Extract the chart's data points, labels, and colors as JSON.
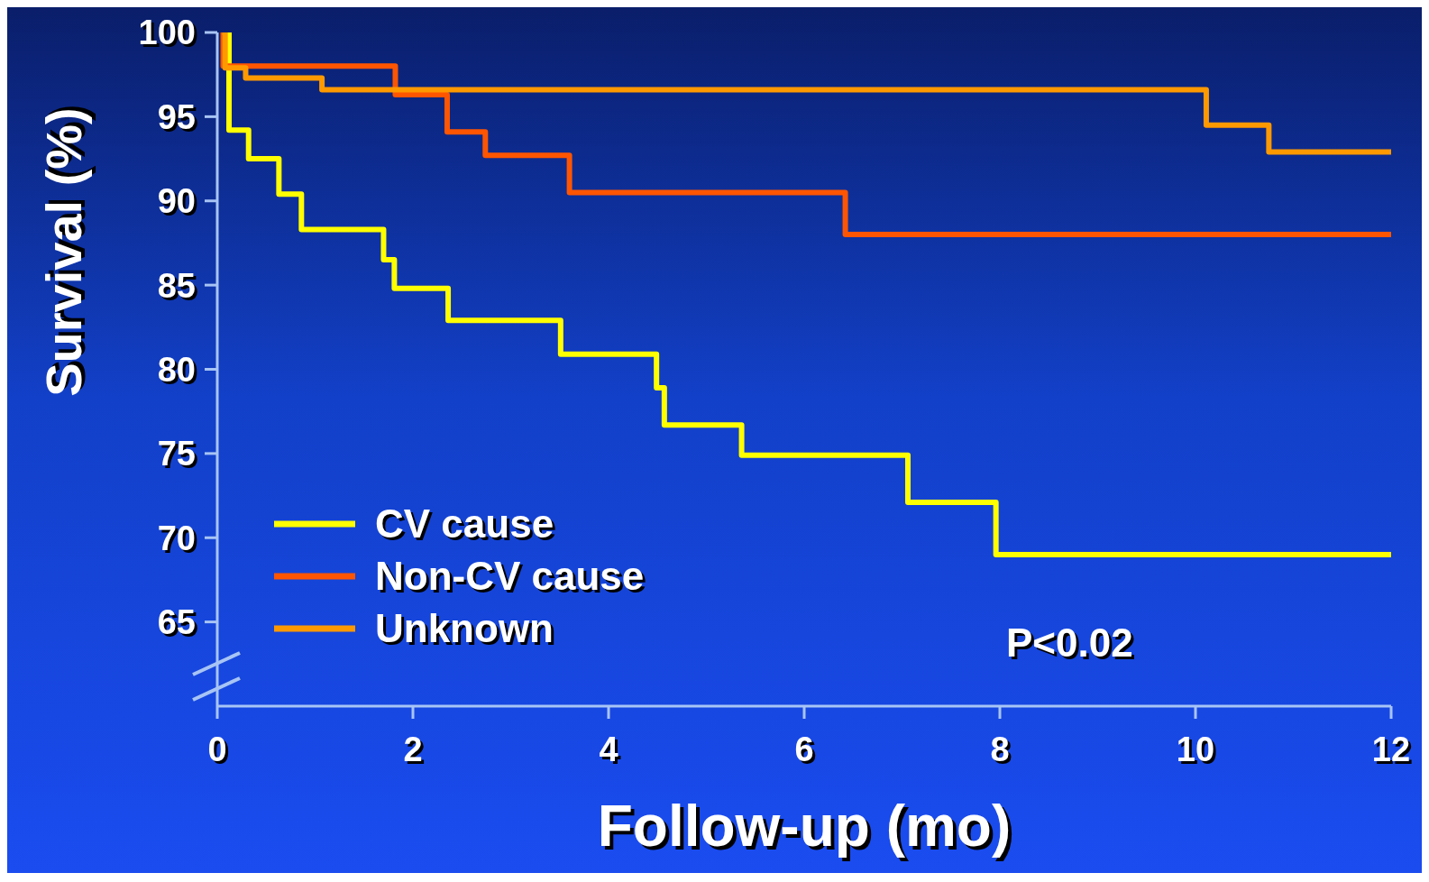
{
  "chart_data": {
    "type": "step",
    "xlabel": "Follow-up (mo)",
    "ylabel": "Survival (%)",
    "xlim": [
      0,
      12
    ],
    "xticks": [
      0,
      2,
      4,
      6,
      8,
      10,
      12
    ],
    "ylim": [
      60,
      100
    ],
    "yticks": [
      65,
      70,
      75,
      80,
      85,
      90,
      95,
      100
    ],
    "grid": false,
    "legend": "bottom left",
    "marker": "none",
    "line_style": "solid",
    "annotations": [
      "P<0.02"
    ],
    "series": [
      {
        "name": "CV cause",
        "color": "#ffff00",
        "x": [
          0.1,
          0.12,
          0.32,
          0.63,
          0.86,
          1.7,
          1.81,
          2.36,
          3.51,
          4.49,
          4.57,
          5.36,
          7.06,
          7.96,
          12
        ],
        "values": [
          100,
          94.2,
          92.5,
          90.4,
          88.3,
          86.5,
          84.8,
          82.9,
          80.9,
          78.9,
          76.7,
          74.9,
          72.1,
          69,
          69
        ]
      },
      {
        "name": "Non-CV cause",
        "color": "#ff5500",
        "x": [
          0.05,
          0.06,
          1.82,
          2.35,
          2.74,
          3.6,
          6.42,
          12
        ],
        "values": [
          100,
          98,
          96.3,
          94.1,
          92.7,
          90.5,
          88,
          88
        ]
      },
      {
        "name": "Unknown",
        "color": "#ff9900",
        "x": [
          0.05,
          0.08,
          0.29,
          1.07,
          10.11,
          10.75,
          12
        ],
        "values": [
          100,
          97.9,
          97.3,
          96.6,
          94.5,
          92.9,
          92.9
        ]
      }
    ]
  }
}
